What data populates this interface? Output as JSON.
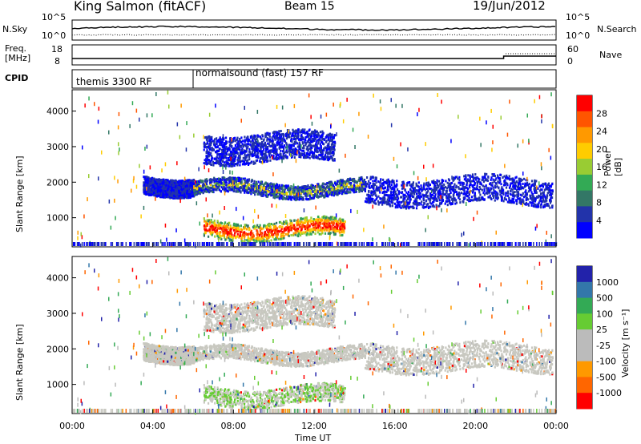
{
  "header": {
    "station": "King Salmon (fitACF)",
    "beam": "Beam 15",
    "date": "19/Jun/2012"
  },
  "noise_panel": {
    "left_label": "N.Sky",
    "right_label": "N.Search",
    "left_ticks": [
      "10^5",
      "10^0"
    ],
    "right_ticks": [
      "10^5",
      "10^0"
    ]
  },
  "freq_panel": {
    "left_label_1": "Freq.",
    "left_label_2": "[MHz]",
    "right_label": "Nave",
    "left_ticks": [
      "18",
      "8"
    ],
    "right_ticks": [
      "60",
      "0"
    ]
  },
  "cpid_panel": {
    "label": "CPID",
    "segments": [
      "themis 3300 RF",
      "normalsound (fast) 157 RF"
    ]
  },
  "x_axis": {
    "label": "Time UT",
    "ticks": [
      "00:00",
      "04:00",
      "08:00",
      "12:00",
      "16:00",
      "20:00",
      "00:00"
    ]
  },
  "power_panel": {
    "ylabel": "Slant Range [km]",
    "yticks": [
      "4000",
      "3000",
      "2000",
      "1000"
    ],
    "cbar_label": "Power [dB]",
    "cbar_ticks": [
      "28",
      "24",
      "20",
      "16",
      "12",
      "8",
      "4"
    ],
    "cbar_colors": [
      "#ff0000",
      "#ff5500",
      "#ff9900",
      "#ffcc00",
      "#99cc33",
      "#33aa55",
      "#337766",
      "#2233aa",
      "#0000ff"
    ]
  },
  "velocity_panel": {
    "ylabel": "Slant Range [km]",
    "yticks": [
      "4000",
      "3000",
      "2000",
      "1000"
    ],
    "cbar_label": "Velocity [m s⁻¹]",
    "cbar_ticks": [
      "1000",
      "500",
      "100",
      "25",
      "-25",
      "-100",
      "-500",
      "-1000"
    ],
    "cbar_colors": [
      "#2222aa",
      "#3377aa",
      "#33aa55",
      "#66cc33",
      "#bbbbbb",
      "#bbbbbb",
      "#ff9900",
      "#ff6600",
      "#ff0000"
    ]
  },
  "chart_data": {
    "type": "heatmap",
    "x_range_hours": [
      0,
      24
    ],
    "y_range_km": [
      180,
      4600
    ],
    "scatter_power_bands": [
      {
        "t0": 3.5,
        "t1": 6.0,
        "r0": 1700,
        "r1": 2200,
        "level": "low"
      },
      {
        "t0": 6.0,
        "t1": 14.5,
        "r0": 1650,
        "r1": 2050,
        "level": "mid"
      },
      {
        "t0": 14.5,
        "t1": 23.8,
        "r0": 1400,
        "r1": 2150,
        "level": "low"
      },
      {
        "t0": 6.5,
        "t1": 13.5,
        "r0": 450,
        "r1": 950,
        "level": "high"
      },
      {
        "t0": 6.5,
        "t1": 13.0,
        "r0": 2600,
        "r1": 3400,
        "level": "low"
      }
    ]
  }
}
